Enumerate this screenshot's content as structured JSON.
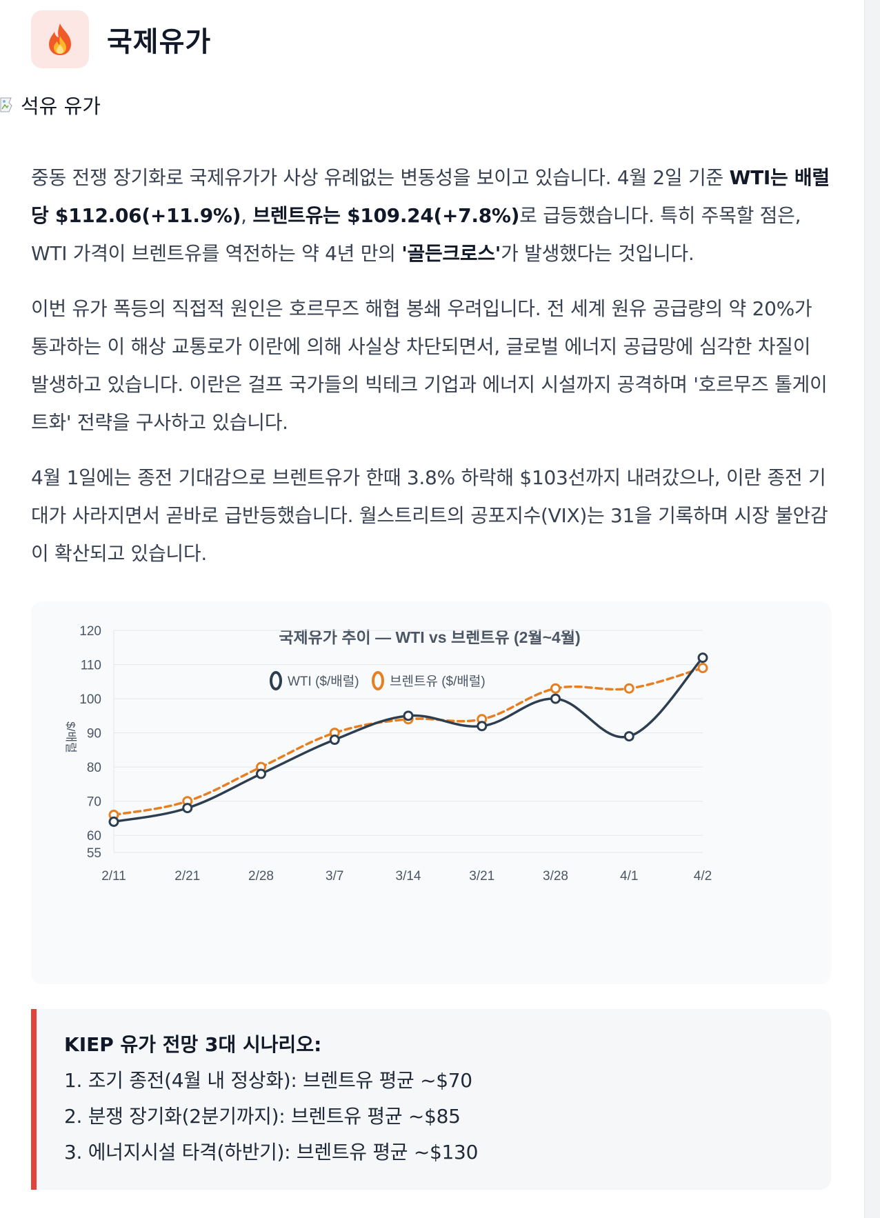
{
  "header": {
    "icon": "fire-icon",
    "title": "국제유가"
  },
  "image_alt": "석유 유가",
  "paragraphs": {
    "p1": [
      {
        "t": "중동 전쟁 장기화로 국제유가가 사상 유례없는 변동성을 보이고 있습니다. 4월 2일 기준 ",
        "b": false
      },
      {
        "t": "WTI는 배럴당 $112.06(+11.9%)",
        "b": true
      },
      {
        "t": ", ",
        "b": false
      },
      {
        "t": "브렌트유는 $109.24(+7.8%)",
        "b": true
      },
      {
        "t": "로 급등했습니다. 특히 주목할 점은, WTI 가격이 브렌트유를 역전하는 약 4년 만의 ",
        "b": false
      },
      {
        "t": "'골든크로스'",
        "b": true
      },
      {
        "t": "가 발생했다는 것입니다.",
        "b": false
      }
    ],
    "p2": "이번 유가 폭등의 직접적 원인은 호르무즈 해협 봉쇄 우려입니다. 전 세계 원유 공급량의 약 20%가 통과하는 이 해상 교통로가 이란에 의해 사실상 차단되면서, 글로벌 에너지 공급망에 심각한 차질이 발생하고 있습니다. 이란은 걸프 국가들의 빅테크 기업과 에너지 시설까지 공격하며 '호르무즈 톨게이트화' 전략을 구사하고 있습니다.",
    "p3": "4월 1일에는 종전 기대감으로 브렌트유가 한때 3.8% 하락해 $103선까지 내려갔으나, 이란 종전 기대가 사라지면서 곧바로 급반등했습니다. 월스트리트의 공포지수(VIX)는 31을 기록하며 시장 불안감이 확산되고 있습니다."
  },
  "chart_data": {
    "type": "line",
    "title": "국제유가 추이 — WTI vs 브렌트유 (2월~4월)",
    "ylabel": "$/배럴",
    "xlabel": "",
    "categories": [
      "2/11",
      "2/21",
      "2/28",
      "3/7",
      "3/14",
      "3/21",
      "3/28",
      "4/1",
      "4/2"
    ],
    "ylim": [
      55,
      120
    ],
    "yticks": [
      55,
      60,
      70,
      80,
      90,
      100,
      110,
      120
    ],
    "legend_position": "top-center",
    "grid": true,
    "series": [
      {
        "name": "WTI ($/배럴)",
        "color": "#2c3e50",
        "style": "solid",
        "values": [
          64,
          68,
          78,
          88,
          95,
          92,
          100,
          89,
          112
        ]
      },
      {
        "name": "브렌트유 ($/배럴)",
        "color": "#e67e22",
        "style": "dashed",
        "values": [
          66,
          70,
          80,
          90,
          94,
          94,
          103,
          103,
          109
        ]
      }
    ]
  },
  "callout": {
    "title": "KIEP 유가 전망 3대 시나리오:",
    "items": [
      "1. 조기 종전(4월 내 정상화): 브렌트유 평균 ~$70",
      "2. 분쟁 장기화(2분기까지): 브렌트유 평균 ~$85",
      "3. 에너지시설 타격(하반기): 브렌트유 평균 ~$130"
    ],
    "accent": "#e0443a"
  }
}
